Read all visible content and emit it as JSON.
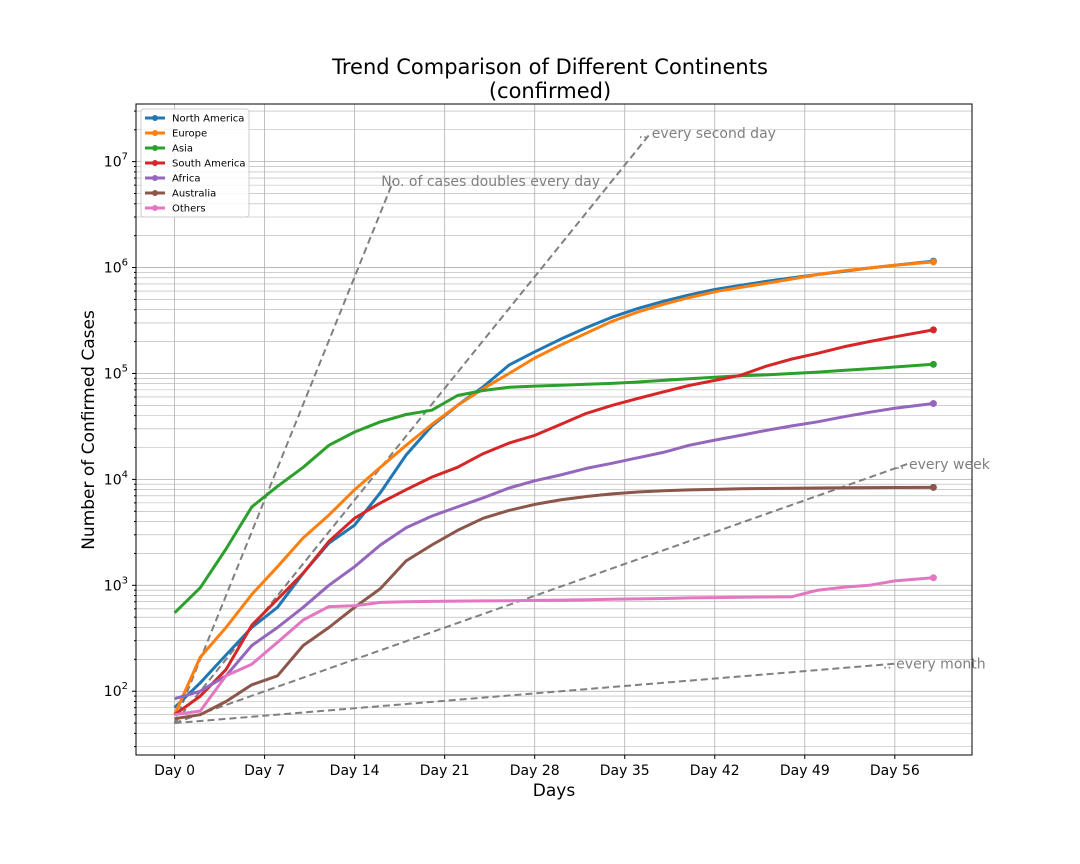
{
  "chart_data": {
    "type": "line",
    "title": "Trend Comparison of Different Continents",
    "subtitle": "(confirmed)",
    "xlabel": "Days",
    "ylabel": "Number of Confirmed Cases",
    "yscale": "log",
    "xlim": [
      -3,
      62
    ],
    "ylim": [
      25,
      35000000
    ],
    "x_ticks": [
      0,
      7,
      14,
      21,
      28,
      35,
      42,
      49,
      56
    ],
    "x_tick_labels": [
      "Day 0",
      "Day 7",
      "Day 14",
      "Day 21",
      "Day 28",
      "Day 35",
      "Day 42",
      "Day 49",
      "Day 56"
    ],
    "y_ticks": [
      {
        "value": 100,
        "base": "10",
        "exp": "2"
      },
      {
        "value": 1000,
        "base": "10",
        "exp": "3"
      },
      {
        "value": 10000,
        "base": "10",
        "exp": "4"
      },
      {
        "value": 100000,
        "base": "10",
        "exp": "5"
      },
      {
        "value": 1000000,
        "base": "10",
        "exp": "6"
      },
      {
        "value": 10000000,
        "base": "10",
        "exp": "7"
      }
    ],
    "grid": "major and minor",
    "legend_position": "top-left",
    "series": [
      {
        "name": "North America",
        "color": "#1f77b4",
        "x": [
          0,
          2,
          4,
          6,
          8,
          10,
          12,
          14,
          16,
          18,
          20,
          22,
          24,
          26,
          28,
          30,
          32,
          34,
          36,
          38,
          40,
          42,
          44,
          46,
          48,
          50,
          52,
          54,
          56,
          59
        ],
        "y": [
          70,
          120,
          220,
          400,
          620,
          1300,
          2500,
          3700,
          7500,
          17000,
          32000,
          50000,
          75000,
          120000,
          160000,
          210000,
          270000,
          340000,
          410000,
          480000,
          550000,
          620000,
          680000,
          740000,
          800000,
          860000,
          920000,
          990000,
          1050000,
          1150000
        ]
      },
      {
        "name": "Europe",
        "color": "#ff7f0e",
        "x": [
          0,
          2,
          4,
          6,
          8,
          10,
          12,
          14,
          16,
          18,
          20,
          22,
          24,
          26,
          28,
          30,
          32,
          34,
          36,
          38,
          40,
          42,
          44,
          46,
          48,
          50,
          52,
          54,
          56,
          59
        ],
        "y": [
          60,
          210,
          400,
          820,
          1500,
          2800,
          4600,
          8000,
          13000,
          21000,
          33000,
          50000,
          72000,
          100000,
          140000,
          185000,
          240000,
          310000,
          380000,
          450000,
          520000,
          590000,
          650000,
          710000,
          780000,
          860000,
          930000,
          990000,
          1050000,
          1130000
        ]
      },
      {
        "name": "Asia",
        "color": "#2ca02c",
        "x": [
          0,
          2,
          4,
          6,
          8,
          10,
          12,
          14,
          16,
          18,
          20,
          22,
          24,
          26,
          28,
          30,
          32,
          34,
          36,
          38,
          40,
          42,
          44,
          46,
          48,
          50,
          52,
          54,
          56,
          59
        ],
        "y": [
          550,
          950,
          2200,
          5500,
          8600,
          13000,
          21000,
          28000,
          35000,
          41000,
          45000,
          62000,
          69000,
          74000,
          76000,
          77500,
          79000,
          80500,
          83000,
          86000,
          89000,
          92000,
          95000,
          97000,
          100000,
          103000,
          107000,
          111000,
          115000,
          122000
        ]
      },
      {
        "name": "South America",
        "color": "#d62728",
        "x": [
          0,
          2,
          4,
          6,
          8,
          10,
          12,
          14,
          16,
          18,
          20,
          22,
          24,
          26,
          28,
          30,
          32,
          34,
          36,
          38,
          40,
          42,
          44,
          46,
          48,
          50,
          52,
          54,
          56,
          59
        ],
        "y": [
          60,
          90,
          160,
          420,
          740,
          1300,
          2600,
          4300,
          6000,
          8000,
          10500,
          13000,
          17500,
          22000,
          26000,
          33000,
          42000,
          50000,
          58000,
          67000,
          77000,
          86000,
          96000,
          117000,
          137000,
          155000,
          178000,
          200000,
          222000,
          258000
        ]
      },
      {
        "name": "Africa",
        "color": "#9467bd",
        "x": [
          0,
          2,
          4,
          6,
          8,
          10,
          12,
          14,
          16,
          18,
          20,
          22,
          24,
          26,
          28,
          30,
          32,
          34,
          36,
          38,
          40,
          42,
          44,
          46,
          48,
          50,
          52,
          54,
          56,
          59
        ],
        "y": [
          85,
          100,
          140,
          270,
          400,
          620,
          1000,
          1500,
          2400,
          3500,
          4500,
          5500,
          6700,
          8300,
          9700,
          11000,
          12700,
          14200,
          16000,
          18000,
          21000,
          23500,
          26000,
          29000,
          32000,
          35000,
          39000,
          43000,
          47000,
          52000
        ]
      },
      {
        "name": "Australia",
        "color": "#8c564b",
        "x": [
          0,
          2,
          4,
          6,
          8,
          10,
          12,
          14,
          16,
          18,
          20,
          22,
          24,
          26,
          28,
          30,
          32,
          34,
          36,
          38,
          40,
          42,
          44,
          46,
          48,
          50,
          52,
          54,
          56,
          59
        ],
        "y": [
          55,
          60,
          80,
          115,
          140,
          270,
          400,
          620,
          930,
          1700,
          2400,
          3300,
          4300,
          5100,
          5800,
          6400,
          6900,
          7300,
          7600,
          7800,
          7950,
          8050,
          8150,
          8200,
          8250,
          8300,
          8330,
          8360,
          8380,
          8400
        ]
      },
      {
        "name": "Others",
        "color": "#e377c2",
        "x": [
          0,
          2,
          4,
          6,
          8,
          10,
          12,
          14,
          16,
          18,
          20,
          22,
          24,
          26,
          28,
          30,
          32,
          34,
          36,
          38,
          40,
          42,
          44,
          46,
          48,
          50,
          52,
          54,
          56,
          59
        ],
        "y": [
          60,
          65,
          140,
          180,
          290,
          470,
          630,
          640,
          690,
          700,
          705,
          710,
          712,
          715,
          720,
          725,
          730,
          740,
          745,
          750,
          760,
          765,
          770,
          775,
          780,
          900,
          960,
          1000,
          1100,
          1180
        ]
      }
    ],
    "reference_lines": [
      {
        "label": "No. of cases doubles every day",
        "x": [
          0,
          17
        ],
        "y": [
          50,
          6553600
        ]
      },
      {
        "label": ".. every second day",
        "x": [
          0,
          37
        ],
        "y": [
          50,
          18536000
        ]
      },
      {
        "label": ".. every week",
        "x": [
          0,
          57
        ],
        "y": [
          50,
          14000
        ]
      },
      {
        "label": ".. every month",
        "x": [
          0,
          56
        ],
        "y": [
          50,
          182
        ]
      }
    ]
  }
}
